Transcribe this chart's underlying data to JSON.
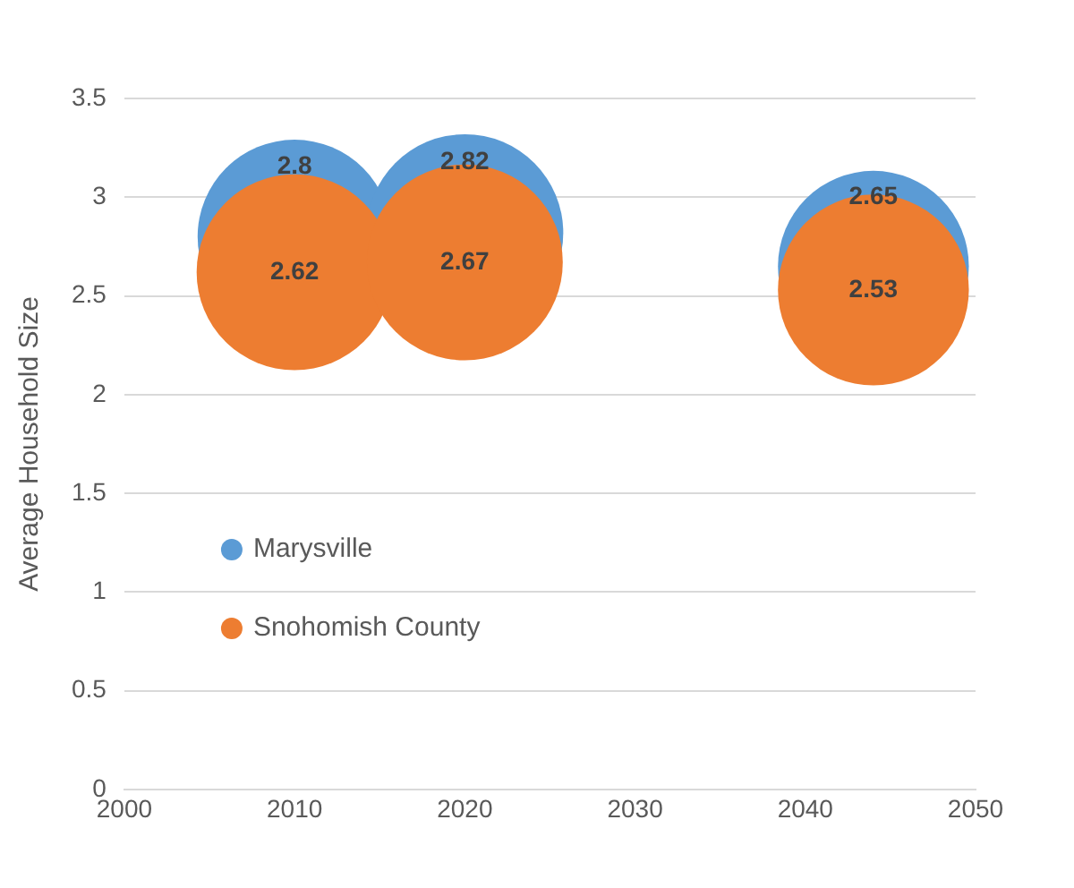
{
  "chart_data": {
    "type": "bubble",
    "ylabel": "Average Household Size",
    "series": [
      {
        "name": "Marysville",
        "color": "#5b9bd5",
        "x": [
          2010,
          2020,
          2044
        ],
        "values": [
          2.8,
          2.82,
          2.65
        ],
        "sizes": [
          0.97,
          1,
          0.94
        ]
      },
      {
        "name": "Snohomish County",
        "color": "#ed7d31",
        "x": [
          2010,
          2020,
          2044
        ],
        "values": [
          2.62,
          2.67,
          2.53
        ],
        "sizes": [
          0.99,
          0.99,
          0.94
        ]
      }
    ],
    "xlim": [
      2000,
      2050
    ],
    "xticks": [
      2000,
      2010,
      2020,
      2030,
      2040,
      2050
    ],
    "ylim": [
      0,
      3.5
    ],
    "yticks": [
      0,
      0.5,
      1,
      1.5,
      2,
      2.5,
      3,
      3.5
    ],
    "grid": "y",
    "legend": "bottom left",
    "data_labels": true
  }
}
